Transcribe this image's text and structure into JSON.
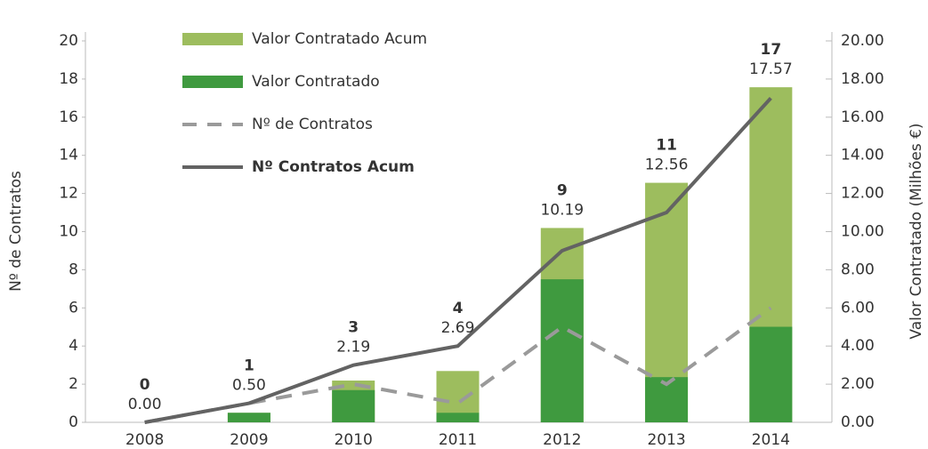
{
  "chart_data": {
    "type": "bar_line",
    "categories": [
      "2008",
      "2009",
      "2010",
      "2011",
      "2012",
      "2013",
      "2014"
    ],
    "y_label": "Nº de Contratos",
    "y2_label": "Valor Contratado (Milhões €)",
    "ylim": [
      0,
      20
    ],
    "yticks": [
      0,
      2,
      4,
      6,
      8,
      10,
      12,
      14,
      16,
      18,
      20
    ],
    "y2lim": [
      0,
      20
    ],
    "y2ticks": [
      {
        "value": 0,
        "label": "0.00"
      },
      {
        "value": 2,
        "label": "2.00"
      },
      {
        "value": 4,
        "label": "4.00"
      },
      {
        "value": 6,
        "label": "6.00"
      },
      {
        "value": 8,
        "label": "8.00"
      },
      {
        "value": 10,
        "label": "10.00"
      },
      {
        "value": 12,
        "label": "12.00"
      },
      {
        "value": 14,
        "label": "14.00"
      },
      {
        "value": 16,
        "label": "16.00"
      },
      {
        "value": 18,
        "label": "18.00"
      },
      {
        "value": 20,
        "label": "20.00"
      }
    ],
    "series": [
      {
        "name": "Valor Contratado Acum",
        "kind": "bar",
        "axis": "y2",
        "color": "#9dbd5e",
        "values": [
          0,
          0.5,
          2.19,
          2.69,
          10.19,
          12.56,
          17.57
        ],
        "value_labels": [
          "0.00",
          "0.50",
          "2.19",
          "2.69",
          "10.19",
          "12.56",
          "17.57"
        ]
      },
      {
        "name": "Valor Contratado",
        "kind": "bar",
        "axis": "y2",
        "color": "#3f9a3f",
        "values": [
          0,
          0.5,
          1.69,
          0.5,
          7.5,
          2.37,
          5.01
        ]
      },
      {
        "name": "Nº de Contratos",
        "kind": "dashed-line",
        "color": "#9a9a9a",
        "values": [
          0,
          1,
          2,
          1,
          5,
          2,
          6
        ]
      },
      {
        "name": "Nº Contratos Acum",
        "kind": "line",
        "color": "#636363",
        "values": [
          0,
          1,
          3,
          4,
          9,
          11,
          17
        ]
      }
    ],
    "legend": "upper left"
  }
}
